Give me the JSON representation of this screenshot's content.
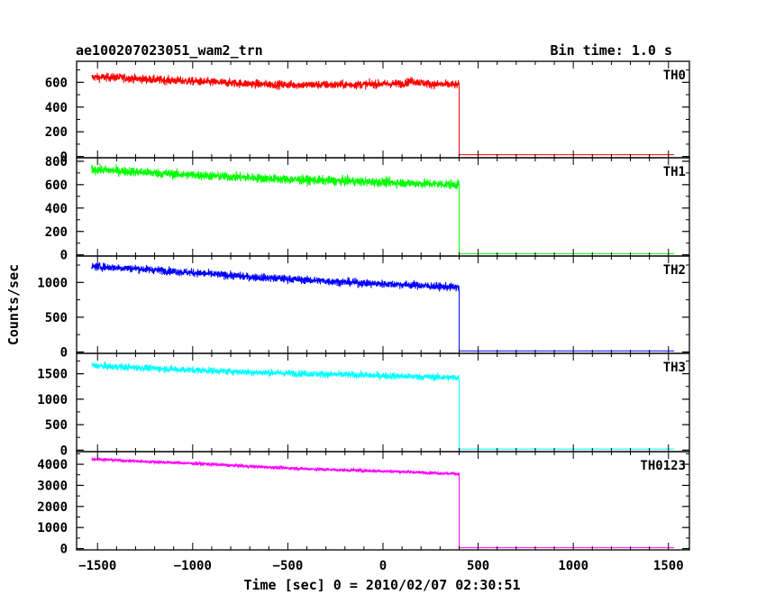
{
  "header": {
    "source_label": "ae100207023051_wam2_trn",
    "bin_time_label": "Bin time: 1.0 s"
  },
  "chart_data": {
    "type": "line",
    "title": "ae100207023051_wam2_trn",
    "subtitle": "Bin time: 1.0 s",
    "xlabel": "Time [sec] 0 = 2010/02/07 02:30:51",
    "ylabel": "Counts/sec",
    "xlim": [
      -1610,
      1610
    ],
    "x_ticks": [
      -1500,
      -1000,
      -500,
      0,
      500,
      1000,
      1500
    ],
    "x_tick_labels": [
      "−1500",
      "−1000",
      "−500",
      "0",
      "500",
      "1000",
      "1500"
    ],
    "grid": false,
    "panels": [
      {
        "name": "TH0",
        "color": "#ff0000",
        "ylim": [
          -10,
          770
        ],
        "y_ticks": [
          0,
          200,
          400,
          600
        ],
        "y_tick_labels": [
          "0",
          "200",
          "400",
          "600"
        ],
        "x": [
          -1530,
          -1400,
          -1250,
          -1100,
          -950,
          -800,
          -650,
          -500,
          -350,
          -200,
          -50,
          100,
          150,
          250,
          400
        ],
        "y": [
          640,
          640,
          625,
          615,
          605,
          595,
          585,
          580,
          580,
          580,
          585,
          590,
          610,
          585,
          580
        ],
        "noise": 30,
        "post_drop_level": 15,
        "drop_time": 400,
        "end_time": 1530
      },
      {
        "name": "TH1",
        "color": "#00ff00",
        "ylim": [
          -10,
          830
        ],
        "y_ticks": [
          0,
          200,
          400,
          600,
          800
        ],
        "y_tick_labels": [
          "0",
          "200",
          "400",
          "600",
          "800"
        ],
        "x": [
          -1530,
          -1300,
          -1100,
          -900,
          -700,
          -500,
          -300,
          -100,
          100,
          300,
          400
        ],
        "y": [
          730,
          710,
          690,
          675,
          660,
          645,
          635,
          625,
          615,
          605,
          600
        ],
        "noise": 35,
        "post_drop_level": 10,
        "drop_time": 400,
        "end_time": 1530
      },
      {
        "name": "TH2",
        "color": "#0000ff",
        "ylim": [
          -20,
          1380
        ],
        "y_ticks": [
          0,
          500,
          1000
        ],
        "y_tick_labels": [
          "0",
          "500",
          "1000"
        ],
        "x": [
          -1530,
          -1300,
          -1100,
          -900,
          -700,
          -500,
          -300,
          -100,
          100,
          300,
          400
        ],
        "y": [
          1230,
          1200,
          1160,
          1120,
          1080,
          1050,
          1020,
          990,
          970,
          940,
          930
        ],
        "noise": 50,
        "post_drop_level": 15,
        "drop_time": 400,
        "end_time": 1530
      },
      {
        "name": "TH3",
        "color": "#00ffff",
        "ylim": [
          -30,
          1900
        ],
        "y_ticks": [
          0,
          500,
          1000,
          1500
        ],
        "y_tick_labels": [
          "0",
          "500",
          "1000",
          "1500"
        ],
        "x": [
          -1530,
          -1300,
          -1100,
          -900,
          -700,
          -500,
          -300,
          -100,
          100,
          300,
          400
        ],
        "y": [
          1660,
          1620,
          1590,
          1560,
          1530,
          1510,
          1490,
          1470,
          1450,
          1430,
          1420
        ],
        "noise": 60,
        "post_drop_level": 20,
        "drop_time": 400,
        "end_time": 1530
      },
      {
        "name": "TH0123",
        "color": "#ff00ff",
        "ylim": [
          -60,
          4600
        ],
        "y_ticks": [
          0,
          1000,
          2000,
          3000,
          4000
        ],
        "y_tick_labels": [
          "0",
          "1000",
          "2000",
          "3000",
          "4000"
        ],
        "x": [
          -1530,
          -1300,
          -1100,
          -900,
          -700,
          -500,
          -300,
          -100,
          100,
          300,
          400
        ],
        "y": [
          4250,
          4150,
          4080,
          4000,
          3900,
          3820,
          3750,
          3700,
          3650,
          3580,
          3550
        ],
        "noise": 70,
        "post_drop_level": 40,
        "drop_time": 400,
        "end_time": 1530
      }
    ]
  }
}
